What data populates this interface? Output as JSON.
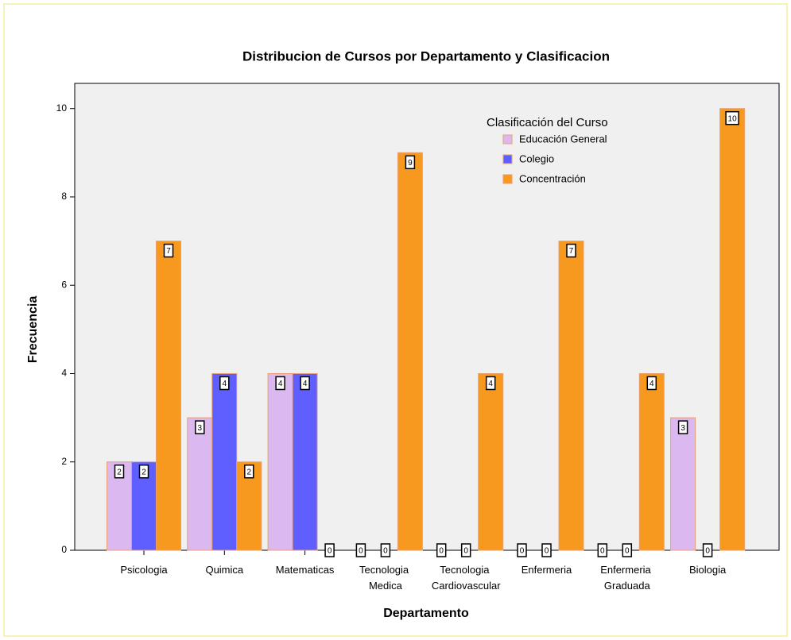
{
  "chart_data": {
    "type": "bar",
    "title": "Distribucion de Cursos por Departamento y Clasificacion",
    "x_label": "Departamento",
    "y_label": "Frecuencia",
    "legend_title": "Clasificación del Curso",
    "categories": [
      "Psicologia",
      "Quimica",
      "Matematicas",
      "Tecnologia Medica",
      "Tecnologia Cardiovascular",
      "Enfermeria",
      "Enfermeria Graduada",
      "Biologia"
    ],
    "series": [
      {
        "name": "Educación General",
        "color": "#dcb8f0",
        "values": [
          2,
          3,
          4,
          0,
          0,
          0,
          0,
          3
        ]
      },
      {
        "name": "Colegio",
        "color": "#5f5fff",
        "values": [
          2,
          4,
          4,
          0,
          0,
          0,
          0,
          0
        ]
      },
      {
        "name": "Concentración",
        "color": "#f7991e",
        "values": [
          7,
          2,
          0,
          9,
          4,
          7,
          4,
          10
        ]
      }
    ],
    "ylim": [
      0,
      10.57
    ],
    "yticks": [
      0,
      2,
      4,
      6,
      8,
      10
    ],
    "legend": "top-right"
  }
}
